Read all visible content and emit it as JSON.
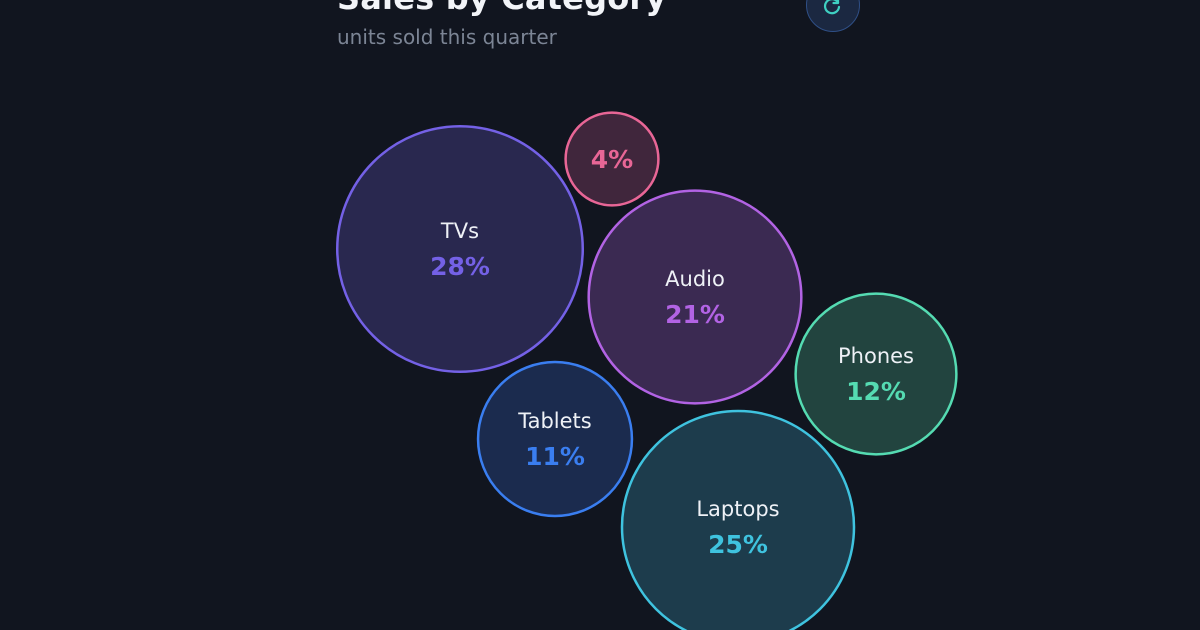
{
  "header": {
    "title": "Sales by Category",
    "subtitle": "units sold this quarter",
    "refresh_icon": "refresh-icon"
  },
  "chart_data": {
    "type": "bubble",
    "title": "Sales by Category",
    "subtitle": "units sold this quarter",
    "value_unit": "%",
    "series": [
      {
        "name": "TVs",
        "value": 28,
        "label": "28%",
        "color": "#7461e6",
        "fill": "#29284f"
      },
      {
        "name": "Laptops",
        "value": 25,
        "label": "25%",
        "color": "#3fc3df",
        "fill": "#1d3c4c"
      },
      {
        "name": "Audio",
        "value": 21,
        "label": "21%",
        "color": "#b263e4",
        "fill": "#3b2a52"
      },
      {
        "name": "Phones",
        "value": 12,
        "label": "12%",
        "color": "#55dbb2",
        "fill": "#22443f"
      },
      {
        "name": "Tablets",
        "value": 11,
        "label": "11%",
        "color": "#3a7ef0",
        "fill": "#1b2b4e"
      },
      {
        "name": "",
        "value": 4,
        "label": "4%",
        "color": "#e86696",
        "fill": "#40263c"
      }
    ]
  }
}
